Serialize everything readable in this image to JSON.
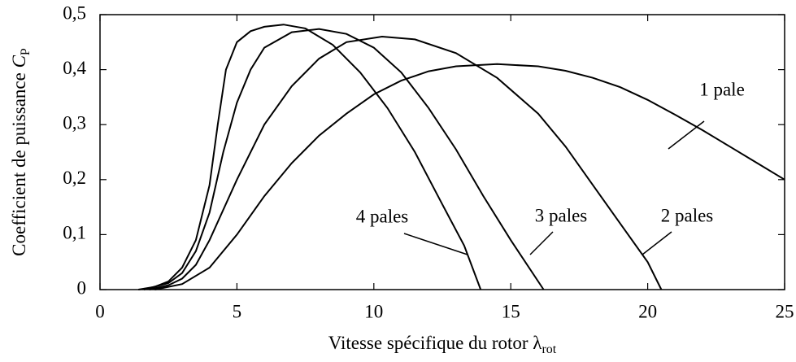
{
  "chart_data": {
    "type": "line",
    "x_label": "Vitesse spécifique du rotor λ",
    "x_label_sub": "rot",
    "y_label": "Coefficient de puissance",
    "y_label_symbol": "C",
    "y_label_sub": "P",
    "xlim": [
      0,
      25
    ],
    "ylim": [
      0,
      0.5
    ],
    "xticks": [
      0,
      5,
      10,
      15,
      20,
      25
    ],
    "yticks": [
      0,
      {
        "value": 0.1,
        "label": "0,1"
      },
      {
        "value": 0.2,
        "label": "0,2"
      },
      {
        "value": 0.3,
        "label": "0,3"
      },
      {
        "value": 0.4,
        "label": "0,4"
      },
      {
        "value": 0.5,
        "label": "0,5"
      }
    ],
    "series": [
      {
        "name": "1 pale",
        "color": "#000000",
        "x": [
          2,
          3,
          4,
          5,
          6,
          7,
          8,
          9,
          10,
          11,
          12,
          13,
          14.5,
          16,
          17,
          18,
          19,
          20,
          21,
          22,
          23,
          24,
          25
        ],
        "values": [
          0,
          0.01,
          0.04,
          0.1,
          0.17,
          0.23,
          0.28,
          0.32,
          0.355,
          0.38,
          0.397,
          0.406,
          0.41,
          0.406,
          0.398,
          0.385,
          0.368,
          0.345,
          0.318,
          0.29,
          0.26,
          0.23,
          0.2
        ]
      },
      {
        "name": "2 pales",
        "color": "#000000",
        "x": [
          1.8,
          2.5,
          3,
          3.5,
          4,
          5,
          6,
          7,
          8,
          9,
          10.3,
          11.5,
          13,
          14.5,
          16,
          17,
          18,
          19,
          20,
          20.5
        ],
        "values": [
          0,
          0.008,
          0.02,
          0.045,
          0.09,
          0.2,
          0.3,
          0.37,
          0.42,
          0.45,
          0.46,
          0.455,
          0.43,
          0.385,
          0.32,
          0.26,
          0.19,
          0.12,
          0.05,
          0
        ]
      },
      {
        "name": "3 pales",
        "color": "#000000",
        "x": [
          1.6,
          2.5,
          3,
          3.5,
          4,
          4.5,
          5,
          5.5,
          6,
          7,
          8,
          9,
          10,
          11,
          12,
          13,
          14,
          15,
          16.2
        ],
        "values": [
          0,
          0.012,
          0.03,
          0.07,
          0.14,
          0.25,
          0.34,
          0.4,
          0.44,
          0.468,
          0.474,
          0.465,
          0.44,
          0.395,
          0.33,
          0.255,
          0.17,
          0.09,
          0
        ]
      },
      {
        "name": "4 pales",
        "color": "#000000",
        "x": [
          1.4,
          2,
          2.5,
          3,
          3.5,
          4,
          4.3,
          4.6,
          5,
          5.5,
          6,
          6.7,
          7.5,
          8.5,
          9.5,
          10.5,
          11.5,
          12.5,
          13.3,
          13.9
        ],
        "values": [
          0,
          0.005,
          0.015,
          0.04,
          0.09,
          0.19,
          0.3,
          0.4,
          0.45,
          0.47,
          0.478,
          0.482,
          0.475,
          0.445,
          0.395,
          0.33,
          0.25,
          0.155,
          0.08,
          0
        ]
      }
    ]
  }
}
